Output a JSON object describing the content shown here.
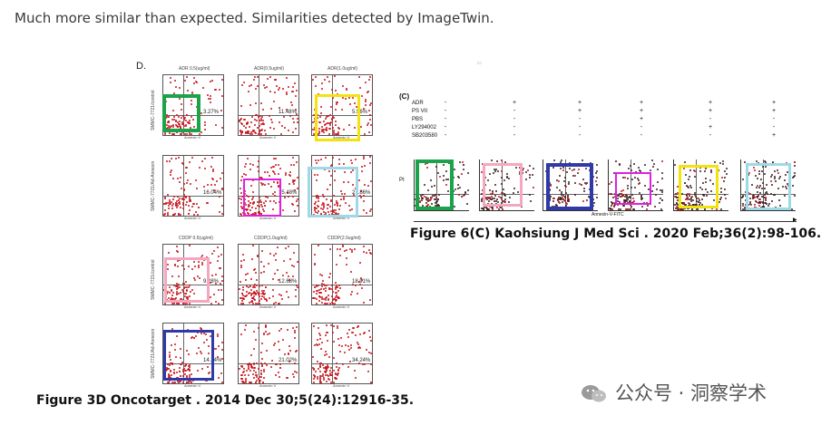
{
  "intro_text": "Much more similar than expected. Similarities detected by ImageTwin.",
  "figure_left": {
    "panel_letter": "D.",
    "plot_titles": [
      "ADR 0.5(ug/ml)",
      "ADR(0.5ug/ml)",
      "ADR(1.0ug/ml)",
      "CDDP 0.5(ug/ml)",
      "CDDP(1.0ug/ml)",
      "CDDP(2.0ug/ml)"
    ],
    "row_labels": [
      "SMMC-7721/control",
      "SMMC-7721/Ad-Annexin",
      "SMMC-7721/control",
      "SMMC-7721/Ad-Annexin"
    ],
    "x_axis_label": "Annexin V",
    "percentages": [
      "3.27%",
      "11.48%",
      "5.56%",
      "16.04%",
      "15.48%",
      "21.86%",
      "9.28%",
      "12.68%",
      "18.91%",
      "14.24%",
      "21.02%",
      "34.24%"
    ],
    "caption": "Figure 3D Oncotarget . 2014 Dec 30;5(24):12916-35."
  },
  "figure_right": {
    "panel_letter": "(C)",
    "treatment_labels": [
      "ADR",
      "PS VII",
      "PBS",
      "LY294002",
      "SB203580"
    ],
    "treatment_matrix": [
      [
        "-",
        "+",
        "+",
        "+",
        "+",
        "+"
      ],
      [
        "-",
        "-",
        "+",
        "+",
        "+",
        "+"
      ],
      [
        "-",
        "-",
        "-",
        "+",
        "-",
        "-"
      ],
      [
        "-",
        "-",
        "-",
        "-",
        "+",
        "-"
      ],
      [
        "-",
        "-",
        "-",
        "-",
        "-",
        "+"
      ]
    ],
    "y_axis_label": "PI",
    "x_axis_label": "Annexin-V-FITC",
    "caption": "Figure 6(C) Kaohsiung J Med Sci . 2020 Feb;36(2):98-106."
  },
  "highlight_colors": {
    "green": "#1aa34a",
    "yellow": "#f2e30f",
    "magenta": "#e020e0",
    "light_blue": "#9fd8e6",
    "pink": "#f4a7bf",
    "blue": "#2f3aa8"
  },
  "watermark": {
    "icon": "wechat-icon",
    "text": "公众号 · 洞察学术"
  }
}
